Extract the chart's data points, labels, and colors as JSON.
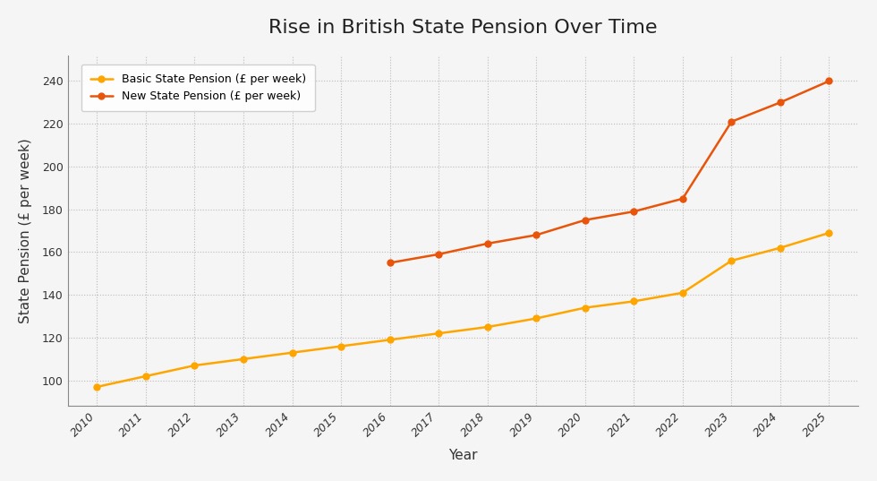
{
  "title": "Rise in British State Pension Over Time",
  "xlabel": "Year",
  "ylabel": "State Pension (£ per week)",
  "years": [
    2010,
    2011,
    2012,
    2013,
    2014,
    2015,
    2016,
    2017,
    2018,
    2019,
    2020,
    2021,
    2022,
    2023,
    2024,
    2025
  ],
  "basic_pension": [
    97,
    102,
    107,
    110,
    113,
    116,
    119,
    122,
    125,
    129,
    134,
    137,
    141,
    156,
    162,
    169
  ],
  "new_pension": [
    null,
    null,
    null,
    null,
    null,
    null,
    155,
    159,
    164,
    168,
    175,
    179,
    185,
    221,
    230,
    240
  ],
  "basic_color": "#FFA500",
  "new_color": "#E8540A",
  "basic_label": "Basic State Pension (£ per week)",
  "new_label": "New State Pension (£ per week)",
  "ylim_min": 88,
  "ylim_max": 252,
  "xlim_min": 2009.4,
  "xlim_max": 2025.6,
  "background_color": "#f5f5f5",
  "plot_bg_color": "#f5f5f5",
  "grid_color": "#bbbbbb",
  "title_fontsize": 16,
  "label_fontsize": 11,
  "tick_fontsize": 9,
  "legend_fontsize": 9,
  "linewidth": 1.8,
  "markersize": 5
}
